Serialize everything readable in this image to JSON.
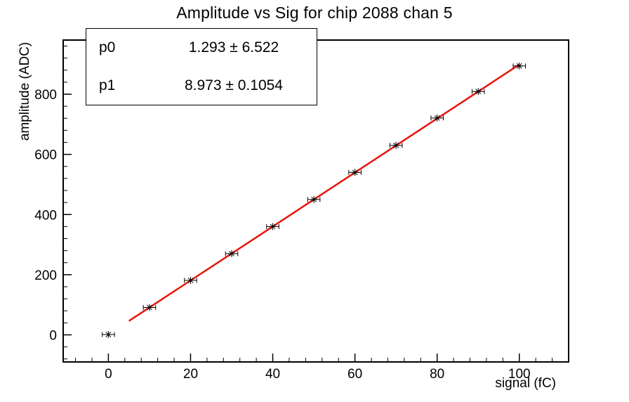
{
  "stats_box": {
    "rows": [
      {
        "param": "p0",
        "value": "1.293 ± 6.522"
      },
      {
        "param": "p1",
        "value": "8.973 ± 0.1054"
      }
    ]
  },
  "chart_data": {
    "type": "scatter",
    "title": "Amplitude vs Sig for chip 2088 chan 5",
    "xlabel": "signal (fC)",
    "ylabel": "amplitude (ADC)",
    "xlim": [
      -11,
      112
    ],
    "ylim": [
      -90,
      980
    ],
    "x_ticks": [
      0,
      20,
      40,
      60,
      80,
      100
    ],
    "y_ticks": [
      0,
      200,
      400,
      600,
      800
    ],
    "x_minor_step": 4,
    "y_minor_step": 40,
    "x_major_interval": 20,
    "y_major_interval": 200,
    "grid": false,
    "legend_position": "none",
    "points": {
      "x": [
        0,
        10,
        20,
        30,
        40,
        50,
        60,
        70,
        80,
        90,
        100
      ],
      "y": [
        1,
        91,
        181,
        270,
        360,
        450,
        540,
        630,
        721,
        809,
        894
      ],
      "x_err": 1.5
    },
    "fit": {
      "type": "linear",
      "p0": 1.293,
      "p0_err": 6.522,
      "p1": 8.973,
      "p1_err": 0.1054,
      "range": [
        5,
        100
      ]
    },
    "colors": {
      "marker": "#000000",
      "fit_line": "#e8140c",
      "frame": "#000000",
      "background": "#ffffff"
    }
  }
}
